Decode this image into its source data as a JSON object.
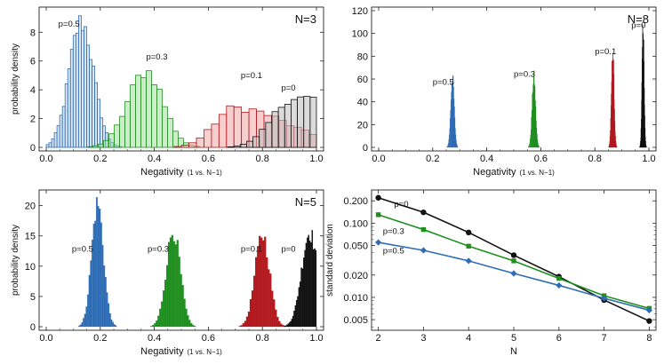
{
  "colors": {
    "p0": "#111111",
    "p0_1": "#b0191e",
    "p0_3": "#1f8f1f",
    "p0_5": "#2f6db5",
    "p0_light": "#bdbdbd",
    "p0_1_light": "#f0a8a8",
    "p0_3_light": "#a6dba0",
    "p0_5_light": "#b9d3ee"
  },
  "chart_data": [
    {
      "type": "histogram",
      "panel": "top-left",
      "style": "outline",
      "label": "N=3",
      "xlabel": "Negativity",
      "xlabel_suffix": "(1 vs. N−1)",
      "ylabel": "probability density",
      "xlim": [
        0,
        1
      ],
      "ylim": [
        0,
        9.5
      ],
      "x_ticks": [
        0,
        0.2,
        0.4,
        0.6,
        0.8,
        1
      ],
      "x_tick_labels": [
        "0.0",
        "0.2",
        "0.4",
        "0.6",
        "0.8",
        "1.0"
      ],
      "y_ticks": [
        0,
        2,
        4,
        6,
        8
      ],
      "y_tick_labels": [
        "0",
        "2",
        "4",
        "6",
        "8"
      ],
      "series": [
        {
          "name": "p=0.5",
          "color_key": "p0_5",
          "mean": 0.13,
          "sd": 0.045,
          "peak": 8.7,
          "skew": 1.0,
          "annotation": {
            "x": 0.045,
            "y": 8.4
          }
        },
        {
          "name": "p=0.3",
          "color_key": "p0_3",
          "mean": 0.37,
          "sd": 0.075,
          "peak": 5.3,
          "skew": 0.9,
          "annotation": {
            "x": 0.37,
            "y": 6.1
          }
        },
        {
          "name": "p=0.1",
          "color_key": "p0_1",
          "mean": 0.7,
          "sd": 0.14,
          "peak": 2.75,
          "skew": 0.55,
          "annotation": {
            "x": 0.72,
            "y": 4.8
          }
        },
        {
          "name": "p=0",
          "color_key": "p0",
          "mean": 0.92,
          "sd": 0.16,
          "peak": 3.5,
          "skew": 0.5,
          "annotation": {
            "x": 0.87,
            "y": 3.95
          }
        }
      ]
    },
    {
      "type": "histogram",
      "panel": "top-right",
      "style": "filled",
      "label": "N=8",
      "xlabel": "Negativity",
      "xlabel_suffix": "(1 vs. N−1)",
      "ylabel": "",
      "xlim": [
        0,
        1
      ],
      "ylim": [
        0,
        120
      ],
      "x_ticks": [
        0,
        0.2,
        0.4,
        0.6,
        0.8,
        1
      ],
      "x_tick_labels": [
        "0.0",
        "0.2",
        "0.4",
        "0.6",
        "0.8",
        "1.0"
      ],
      "y_ticks": [
        0,
        20,
        40,
        60,
        80,
        100,
        120
      ],
      "y_tick_labels": [
        "0",
        "20",
        "40",
        "60",
        "80",
        "100",
        "120"
      ],
      "series": [
        {
          "name": "p=0.5",
          "color_key": "p0_5",
          "mean": 0.273,
          "sd": 0.0065,
          "peak": 62,
          "skew": 1.0,
          "annotation": {
            "x": 0.2,
            "y": 55
          }
        },
        {
          "name": "p=0.3",
          "color_key": "p0_3",
          "mean": 0.574,
          "sd": 0.0065,
          "peak": 62,
          "skew": 1.0,
          "annotation": {
            "x": 0.5,
            "y": 62
          }
        },
        {
          "name": "p=0.1",
          "color_key": "p0_1",
          "mean": 0.866,
          "sd": 0.0048,
          "peak": 85,
          "skew": 1.0,
          "annotation": {
            "x": 0.8,
            "y": 82
          }
        },
        {
          "name": "p=0",
          "color_key": "p0",
          "mean": 0.978,
          "sd": 0.0038,
          "peak": 108,
          "skew": 1.0,
          "annotation": {
            "x": 0.935,
            "y": 105
          }
        }
      ]
    },
    {
      "type": "histogram",
      "panel": "bottom-left",
      "style": "filled",
      "label": "N=5",
      "xlabel": "Negativity",
      "xlabel_suffix": "(1 vs. N−1)",
      "ylabel": "probability density",
      "xlim": [
        0,
        1
      ],
      "ylim": [
        0,
        22
      ],
      "x_ticks": [
        0,
        0.2,
        0.4,
        0.6,
        0.8,
        1
      ],
      "x_tick_labels": [
        "0.0",
        "0.2",
        "0.4",
        "0.6",
        "0.8",
        "1.0"
      ],
      "y_ticks": [
        0,
        5,
        10,
        15,
        20
      ],
      "y_tick_labels": [
        "0",
        "5",
        "10",
        "15",
        "20"
      ],
      "series": [
        {
          "name": "p=0.5",
          "color_key": "p0_5",
          "mean": 0.19,
          "sd": 0.022,
          "peak": 20.3,
          "skew": 1.0,
          "annotation": {
            "x": 0.095,
            "y": 12.4
          }
        },
        {
          "name": "p=0.3",
          "color_key": "p0_3",
          "mean": 0.47,
          "sd": 0.026,
          "peak": 15.8,
          "skew": 1.0,
          "annotation": {
            "x": 0.375,
            "y": 12.4
          }
        },
        {
          "name": "p=0.1",
          "color_key": "p0_1",
          "mean": 0.8,
          "sd": 0.027,
          "peak": 15.2,
          "skew": 1.0,
          "annotation": {
            "x": 0.72,
            "y": 12.4
          }
        },
        {
          "name": "p=0",
          "color_key": "p0",
          "mean": 0.975,
          "sd": 0.03,
          "peak": 15.5,
          "skew": 1.0,
          "annotation": {
            "x": 0.87,
            "y": 12.4
          }
        }
      ]
    },
    {
      "type": "line",
      "panel": "bottom-right",
      "scale": "log-y",
      "xlabel": "N",
      "ylabel": "standard deviation",
      "xlim": [
        1.85,
        8.15
      ],
      "ylim": [
        0.0036,
        0.28
      ],
      "x_ticks": [
        2,
        3,
        4,
        5,
        6,
        7,
        8
      ],
      "x_tick_labels": [
        "2",
        "3",
        "4",
        "5",
        "6",
        "7",
        "8"
      ],
      "y_ticks": [
        0.005,
        0.01,
        0.02,
        0.05,
        0.1,
        0.2
      ],
      "y_tick_labels": [
        "0.005",
        "0.010",
        "0.020",
        "0.050",
        "0.100",
        "0.200"
      ],
      "x": [
        2,
        3,
        4,
        5,
        6,
        7,
        8
      ],
      "series": [
        {
          "name": "p=0",
          "color_key": "p0",
          "marker": "circle",
          "values": [
            0.22,
            0.14,
            0.075,
            0.037,
            0.019,
            0.0092,
            0.0048
          ],
          "annotation": {
            "x": 2.35,
            "y": 0.165
          }
        },
        {
          "name": "p=0.3",
          "color_key": "p0_3",
          "marker": "square",
          "values": [
            0.13,
            0.082,
            0.049,
            0.031,
            0.018,
            0.0105,
            0.0071
          ],
          "annotation": {
            "x": 2.1,
            "y": 0.072
          }
        },
        {
          "name": "p=0.5",
          "color_key": "p0_5",
          "marker": "diamond",
          "values": [
            0.055,
            0.043,
            0.031,
            0.021,
            0.0145,
            0.0097,
            0.0067
          ],
          "annotation": {
            "x": 2.1,
            "y": 0.039
          }
        }
      ]
    }
  ]
}
